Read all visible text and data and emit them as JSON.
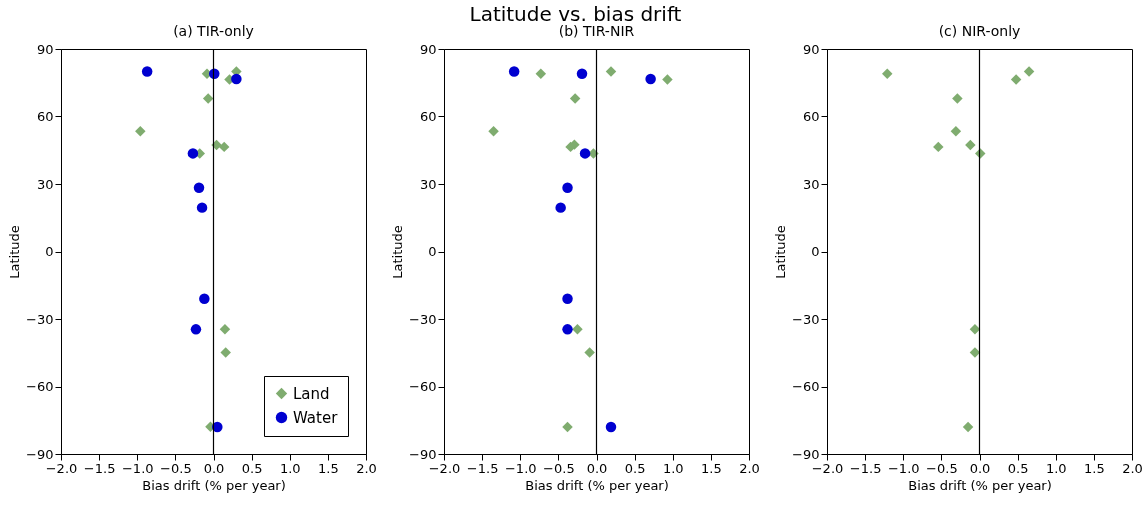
{
  "chart_data": [
    {
      "type": "scatter",
      "title": "(a) TIR-only",
      "xlabel": "Bias drift (% per year)",
      "ylabel": "Latitude",
      "annotations": [
        "Latitude vs. bias drift"
      ],
      "xlim": [
        -2,
        2
      ],
      "xticks": [
        {
          "value": -2,
          "label": "−2.0"
        },
        {
          "value": -1.5,
          "label": "−1.5"
        },
        {
          "value": -1,
          "label": "−1.0"
        },
        {
          "value": -0.5,
          "label": "−0.5"
        },
        {
          "value": 0,
          "label": "0.0"
        },
        {
          "value": 0.5,
          "label": "0.5"
        },
        {
          "value": 1,
          "label": "1.0"
        },
        {
          "value": 1.5,
          "label": "1.5"
        },
        {
          "value": 2,
          "label": "2.0"
        }
      ],
      "ylim": [
        -90,
        90
      ],
      "yticks": [
        {
          "value": -90,
          "label": "−90"
        },
        {
          "value": -60,
          "label": "−60"
        },
        {
          "value": -30,
          "label": "−30"
        },
        0,
        30,
        60,
        90
      ],
      "ref_lines": [
        {
          "axis": "x",
          "value": 0,
          "color": "#000000"
        }
      ],
      "legend": "bottom right",
      "grid": false,
      "series": [
        {
          "name": "Land",
          "color": "#7fac6f",
          "marker": "diamond",
          "x": [
            -0.085,
            0.3,
            0.21,
            -0.07,
            -0.96,
            0.04,
            0.14,
            -0.18,
            0.15,
            0.16,
            -0.04
          ],
          "values": [
            79,
            80,
            76.4,
            68,
            53.4,
            47.3,
            46.5,
            43.6,
            -34.6,
            -44.9,
            -77.9
          ]
        },
        {
          "name": "Water",
          "color": "#0000d0",
          "marker": "circle",
          "x": [
            -0.87,
            0.01,
            0.3,
            -0.27,
            -0.19,
            -0.15,
            -0.12,
            -0.23,
            0.05
          ],
          "values": [
            80,
            79,
            76.7,
            43.6,
            28.3,
            19.5,
            -21,
            -34.6,
            -78
          ]
        }
      ]
    },
    {
      "type": "scatter",
      "title": "(b) TIR-NIR",
      "xlabel": "Bias drift (% per year)",
      "ylabel": "Latitude",
      "xlim": [
        -2,
        2
      ],
      "xticks": [
        {
          "value": -2,
          "label": "−2.0"
        },
        {
          "value": -1.5,
          "label": "−1.5"
        },
        {
          "value": -1,
          "label": "−1.0"
        },
        {
          "value": -0.5,
          "label": "−0.5"
        },
        {
          "value": 0,
          "label": "0.0"
        },
        {
          "value": 0.5,
          "label": "0.5"
        },
        {
          "value": 1,
          "label": "1.0"
        },
        {
          "value": 1.5,
          "label": "1.5"
        },
        {
          "value": 2,
          "label": "2.0"
        }
      ],
      "ylim": [
        -90,
        90
      ],
      "yticks": [
        {
          "value": -90,
          "label": "−90"
        },
        {
          "value": -60,
          "label": "−60"
        },
        {
          "value": -30,
          "label": "−30"
        },
        0,
        30,
        60,
        90
      ],
      "ref_lines": [
        {
          "axis": "x",
          "value": 0,
          "color": "#000000"
        }
      ],
      "grid": false,
      "series": [
        {
          "color": "#7fac6f",
          "marker": "diamond",
          "x": [
            -0.73,
            0.19,
            0.93,
            -0.28,
            -1.35,
            -0.29,
            -0.34,
            -0.04,
            -0.25,
            -0.09,
            -0.38
          ],
          "values": [
            79,
            80,
            76.4,
            68,
            53.4,
            47.5,
            46.5,
            43.6,
            -34.6,
            -44.9,
            -78
          ]
        },
        {
          "color": "#0000d0",
          "marker": "circle",
          "x": [
            -1.08,
            -0.19,
            0.71,
            -0.15,
            -0.38,
            -0.47,
            -0.38,
            -0.38,
            0.19
          ],
          "values": [
            80,
            79,
            76.7,
            43.6,
            28.3,
            19.5,
            -21,
            -34.6,
            -78
          ]
        }
      ]
    },
    {
      "type": "scatter",
      "title": "(c) NIR-only",
      "xlabel": "Bias drift (% per year)",
      "ylabel": "Latitude",
      "xlim": [
        -2,
        2
      ],
      "xticks": [
        {
          "value": -2,
          "label": "−2.0"
        },
        {
          "value": -1.5,
          "label": "−1.5"
        },
        {
          "value": -1,
          "label": "−1.0"
        },
        {
          "value": -0.5,
          "label": "−0.5"
        },
        {
          "value": 0,
          "label": "0.0"
        },
        {
          "value": 0.5,
          "label": "0.5"
        },
        {
          "value": 1,
          "label": "1.0"
        },
        {
          "value": 1.5,
          "label": "1.5"
        },
        {
          "value": 2,
          "label": "2.0"
        }
      ],
      "ylim": [
        -90,
        90
      ],
      "yticks": [
        {
          "value": -90,
          "label": "−90"
        },
        {
          "value": -60,
          "label": "−60"
        },
        {
          "value": -30,
          "label": "−30"
        },
        0,
        30,
        60,
        90
      ],
      "ref_lines": [
        {
          "axis": "x",
          "value": 0,
          "color": "#000000"
        }
      ],
      "grid": false,
      "series": [
        {
          "color": "#7fac6f",
          "marker": "diamond",
          "x": [
            -1.21,
            0.65,
            0.48,
            -0.29,
            -0.31,
            -0.54,
            -0.12,
            0.01,
            -0.06,
            -0.06,
            -0.15
          ],
          "values": [
            79,
            80,
            76.4,
            68,
            53.4,
            46.5,
            47.3,
            43.6,
            -34.6,
            -44.9,
            -78
          ]
        }
      ]
    }
  ]
}
